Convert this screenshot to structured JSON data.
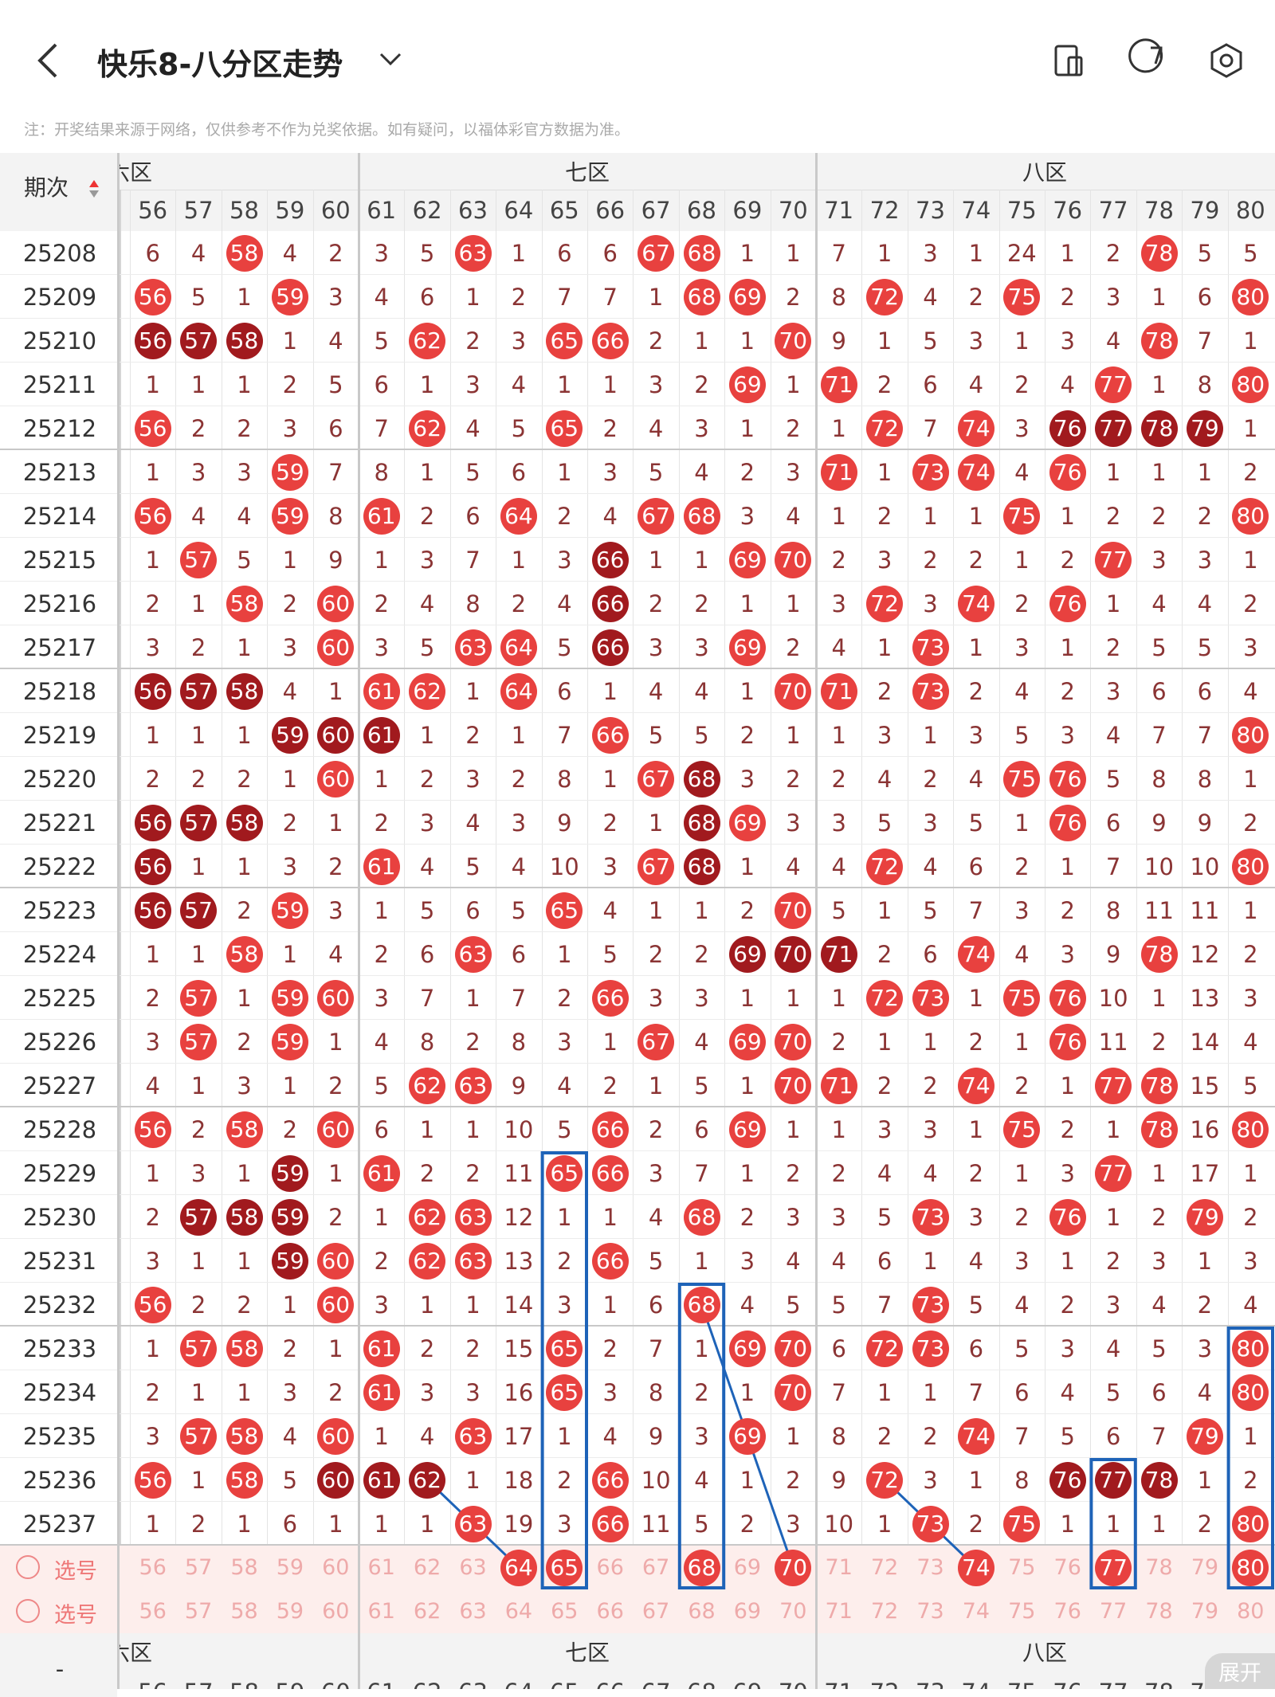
{
  "header": {
    "title": "快乐8-八分区走势",
    "note": "注：开奖结果来源于网络，仅供参考不作为兑奖依据。如有疑问，以福体彩官方数据为准。"
  },
  "table": {
    "period_label": "期次",
    "groups": [
      "六区",
      "七区",
      "八区"
    ],
    "columns": [
      56,
      57,
      58,
      59,
      60,
      61,
      62,
      63,
      64,
      65,
      66,
      67,
      68,
      69,
      70,
      71,
      72,
      73,
      74,
      75,
      76,
      77,
      78,
      79,
      80
    ],
    "rows": [
      {
        "period": 25208,
        "values": [
          6,
          4,
          58,
          4,
          2,
          3,
          5,
          63,
          1,
          6,
          6,
          67,
          68,
          1,
          1,
          7,
          1,
          3,
          1,
          24,
          1,
          2,
          78,
          5,
          5
        ],
        "dark": []
      },
      {
        "period": 25209,
        "values": [
          56,
          5,
          1,
          59,
          3,
          4,
          6,
          1,
          2,
          7,
          7,
          1,
          68,
          69,
          2,
          8,
          72,
          4,
          2,
          75,
          2,
          3,
          1,
          6,
          80
        ],
        "dark": []
      },
      {
        "period": 25210,
        "values": [
          56,
          57,
          58,
          1,
          4,
          5,
          62,
          2,
          3,
          65,
          66,
          2,
          1,
          1,
          70,
          9,
          1,
          5,
          3,
          1,
          3,
          4,
          78,
          7,
          1
        ],
        "dark": [
          56,
          57,
          58
        ]
      },
      {
        "period": 25211,
        "values": [
          1,
          1,
          1,
          2,
          5,
          6,
          1,
          3,
          4,
          1,
          1,
          3,
          2,
          69,
          1,
          71,
          2,
          6,
          4,
          2,
          4,
          77,
          1,
          8,
          80
        ],
        "dark": []
      },
      {
        "period": 25212,
        "values": [
          56,
          2,
          2,
          3,
          6,
          7,
          62,
          4,
          5,
          65,
          2,
          4,
          3,
          1,
          2,
          1,
          72,
          7,
          74,
          3,
          76,
          77,
          78,
          79,
          1
        ],
        "dark": [
          76,
          77,
          78,
          79
        ]
      },
      {
        "period": 25213,
        "values": [
          1,
          3,
          3,
          59,
          7,
          8,
          1,
          5,
          6,
          1,
          3,
          5,
          4,
          2,
          3,
          71,
          1,
          73,
          74,
          4,
          76,
          1,
          1,
          1,
          2
        ],
        "dark": []
      },
      {
        "period": 25214,
        "values": [
          56,
          4,
          4,
          59,
          8,
          61,
          2,
          6,
          64,
          2,
          4,
          67,
          68,
          3,
          4,
          1,
          2,
          1,
          1,
          75,
          1,
          2,
          2,
          2,
          80
        ],
        "dark": []
      },
      {
        "period": 25215,
        "values": [
          1,
          57,
          5,
          1,
          9,
          1,
          3,
          7,
          1,
          3,
          66,
          1,
          1,
          69,
          70,
          2,
          3,
          2,
          2,
          1,
          2,
          77,
          3,
          3,
          1
        ],
        "dark": [
          66
        ]
      },
      {
        "period": 25216,
        "values": [
          2,
          1,
          58,
          2,
          60,
          2,
          4,
          8,
          2,
          4,
          66,
          2,
          2,
          1,
          1,
          3,
          72,
          3,
          74,
          2,
          76,
          1,
          4,
          4,
          2
        ],
        "dark": [
          66
        ]
      },
      {
        "period": 25217,
        "values": [
          3,
          2,
          1,
          3,
          60,
          3,
          5,
          63,
          64,
          5,
          66,
          3,
          3,
          69,
          2,
          4,
          1,
          73,
          1,
          3,
          1,
          2,
          5,
          5,
          3
        ],
        "dark": [
          66
        ]
      },
      {
        "period": 25218,
        "values": [
          56,
          57,
          58,
          4,
          1,
          61,
          62,
          1,
          64,
          6,
          1,
          4,
          4,
          1,
          70,
          71,
          2,
          73,
          2,
          4,
          2,
          3,
          6,
          6,
          4
        ],
        "dark": [
          56,
          57,
          58
        ]
      },
      {
        "period": 25219,
        "values": [
          1,
          1,
          1,
          59,
          60,
          61,
          1,
          2,
          1,
          7,
          66,
          5,
          5,
          2,
          1,
          1,
          3,
          1,
          3,
          5,
          3,
          4,
          7,
          7,
          80
        ],
        "dark": [
          59,
          60,
          61
        ]
      },
      {
        "period": 25220,
        "values": [
          2,
          2,
          2,
          1,
          60,
          1,
          2,
          3,
          2,
          8,
          1,
          67,
          68,
          3,
          2,
          2,
          4,
          2,
          4,
          75,
          76,
          5,
          8,
          8,
          1
        ],
        "dark": [
          68
        ]
      },
      {
        "period": 25221,
        "values": [
          56,
          57,
          58,
          2,
          1,
          2,
          3,
          4,
          3,
          9,
          2,
          1,
          68,
          69,
          3,
          3,
          5,
          3,
          5,
          1,
          76,
          6,
          9,
          9,
          2
        ],
        "dark": [
          56,
          57,
          58,
          68
        ]
      },
      {
        "period": 25222,
        "values": [
          56,
          1,
          1,
          3,
          2,
          61,
          4,
          5,
          4,
          10,
          3,
          67,
          68,
          1,
          4,
          4,
          72,
          4,
          6,
          2,
          1,
          7,
          10,
          10,
          80
        ],
        "dark": [
          56,
          68
        ]
      },
      {
        "period": 25223,
        "values": [
          56,
          57,
          2,
          59,
          3,
          1,
          5,
          6,
          5,
          65,
          4,
          1,
          1,
          2,
          70,
          5,
          1,
          5,
          7,
          3,
          2,
          8,
          11,
          11,
          1
        ],
        "dark": [
          56,
          57
        ]
      },
      {
        "period": 25224,
        "values": [
          1,
          1,
          58,
          1,
          4,
          2,
          6,
          63,
          6,
          1,
          5,
          2,
          2,
          69,
          70,
          71,
          2,
          6,
          74,
          4,
          3,
          9,
          78,
          12,
          2
        ],
        "dark": [
          69,
          70,
          71
        ]
      },
      {
        "period": 25225,
        "values": [
          2,
          57,
          1,
          59,
          60,
          3,
          7,
          1,
          7,
          2,
          66,
          3,
          3,
          1,
          1,
          1,
          72,
          73,
          1,
          75,
          76,
          10,
          1,
          13,
          3
        ],
        "dark": []
      },
      {
        "period": 25226,
        "values": [
          3,
          57,
          2,
          59,
          1,
          4,
          8,
          2,
          8,
          3,
          1,
          67,
          4,
          69,
          70,
          2,
          1,
          1,
          2,
          1,
          76,
          11,
          2,
          14,
          4
        ],
        "dark": []
      },
      {
        "period": 25227,
        "values": [
          4,
          1,
          3,
          1,
          2,
          5,
          62,
          63,
          9,
          4,
          2,
          1,
          5,
          1,
          70,
          71,
          2,
          2,
          74,
          2,
          1,
          77,
          78,
          15,
          5
        ],
        "dark": []
      },
      {
        "period": 25228,
        "values": [
          56,
          2,
          58,
          2,
          60,
          6,
          1,
          1,
          10,
          5,
          66,
          2,
          6,
          69,
          1,
          1,
          3,
          3,
          1,
          75,
          2,
          1,
          78,
          16,
          80
        ],
        "dark": []
      },
      {
        "period": 25229,
        "values": [
          1,
          3,
          1,
          59,
          1,
          61,
          2,
          2,
          11,
          65,
          66,
          3,
          7,
          1,
          2,
          2,
          4,
          4,
          2,
          1,
          3,
          77,
          1,
          17,
          1
        ],
        "dark": [
          59
        ]
      },
      {
        "period": 25230,
        "values": [
          2,
          57,
          58,
          59,
          2,
          1,
          62,
          63,
          12,
          1,
          1,
          4,
          68,
          2,
          3,
          3,
          5,
          73,
          3,
          2,
          76,
          1,
          2,
          79,
          2
        ],
        "dark": [
          57,
          58,
          59
        ]
      },
      {
        "period": 25231,
        "values": [
          3,
          1,
          1,
          59,
          60,
          2,
          62,
          63,
          13,
          2,
          66,
          5,
          1,
          3,
          4,
          4,
          6,
          1,
          4,
          3,
          1,
          2,
          3,
          1,
          3
        ],
        "dark": [
          59
        ]
      },
      {
        "period": 25232,
        "values": [
          56,
          2,
          2,
          1,
          60,
          3,
          1,
          1,
          14,
          3,
          1,
          6,
          68,
          4,
          5,
          5,
          7,
          73,
          5,
          4,
          2,
          3,
          4,
          2,
          4
        ],
        "dark": []
      },
      {
        "period": 25233,
        "values": [
          1,
          57,
          58,
          2,
          1,
          61,
          2,
          2,
          15,
          65,
          2,
          7,
          1,
          69,
          70,
          6,
          72,
          73,
          6,
          5,
          3,
          4,
          5,
          3,
          80
        ],
        "dark": []
      },
      {
        "period": 25234,
        "values": [
          2,
          1,
          1,
          3,
          2,
          61,
          3,
          3,
          16,
          65,
          3,
          8,
          2,
          1,
          70,
          7,
          1,
          1,
          7,
          6,
          4,
          5,
          6,
          4,
          80
        ],
        "dark": []
      },
      {
        "period": 25235,
        "values": [
          3,
          57,
          58,
          4,
          60,
          1,
          4,
          63,
          17,
          1,
          4,
          9,
          3,
          69,
          1,
          8,
          2,
          2,
          74,
          7,
          5,
          6,
          7,
          79,
          1
        ],
        "dark": []
      },
      {
        "period": 25236,
        "values": [
          56,
          1,
          58,
          5,
          60,
          61,
          62,
          1,
          18,
          2,
          66,
          10,
          4,
          1,
          2,
          9,
          72,
          3,
          1,
          8,
          76,
          77,
          78,
          1,
          2
        ],
        "dark": [
          60,
          61,
          62,
          76,
          77,
          78
        ]
      },
      {
        "period": 25237,
        "values": [
          1,
          2,
          1,
          6,
          1,
          1,
          1,
          63,
          19,
          3,
          66,
          11,
          5,
          2,
          3,
          10,
          1,
          73,
          2,
          75,
          1,
          1,
          1,
          2,
          80
        ],
        "dark": []
      }
    ],
    "select_rows": [
      {
        "label": "选号",
        "selected": [
          64,
          65,
          68,
          70,
          74,
          77,
          80
        ]
      },
      {
        "label": "选号",
        "selected": []
      }
    ]
  },
  "footer": {
    "dash": "-",
    "expand": "展开"
  }
}
